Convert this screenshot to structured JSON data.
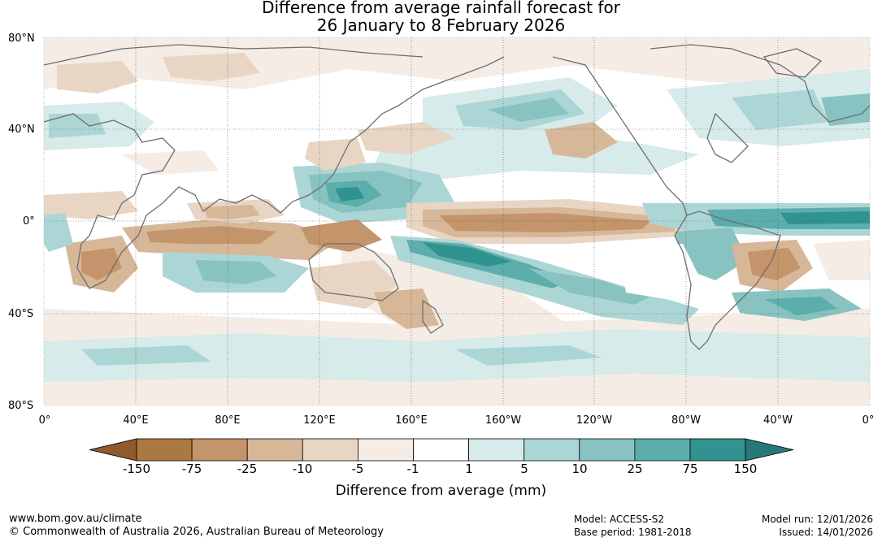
{
  "title_lines": [
    "Difference from average rainfall forecast for",
    "26 January to 8 February 2026"
  ],
  "lat_labels": [
    "80°N",
    "40°N",
    "0°",
    "40°S",
    "80°S"
  ],
  "lon_labels": [
    "0°",
    "40°E",
    "80°E",
    "120°E",
    "160°E",
    "160°W",
    "120°W",
    "80°W",
    "40°W",
    "0°"
  ],
  "colorbar": {
    "title": "Difference from average (mm)",
    "ticks": [
      "-150",
      "-75",
      "-25",
      "-10",
      "-5",
      "-1",
      "1",
      "5",
      "10",
      "25",
      "75",
      "150"
    ],
    "colors": [
      "#8f5a2c",
      "#ac7842",
      "#c4946a",
      "#d6b798",
      "#e8d5c4",
      "#f5ece6",
      "#ffffff",
      "#d6ebea",
      "#acd6d5",
      "#88c3c2",
      "#5caeac",
      "#31938f",
      "#287877"
    ]
  },
  "footer": {
    "url": "www.bom.gov.au/climate",
    "copyright": "© Commonwealth of Australia 2026, Australian Bureau of Meteorology",
    "model": "Model: ACCESS-S2",
    "base_period": "Base period: 1981-2018",
    "model_run": "Model run: 12/01/2026",
    "issued": "Issued: 14/01/2026"
  }
}
